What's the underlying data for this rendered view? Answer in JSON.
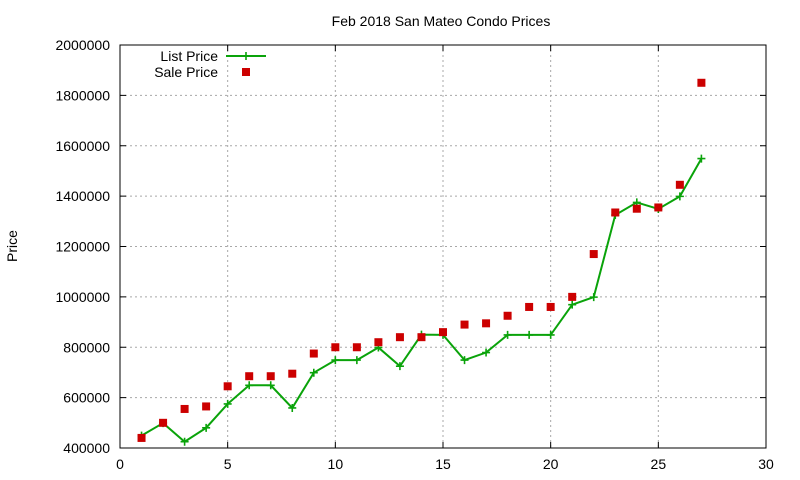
{
  "chart_data": {
    "type": "line",
    "title": "Feb 2018 San Mateo Condo Prices",
    "xlabel": "",
    "ylabel": "Price",
    "xlim": [
      0,
      30
    ],
    "ylim": [
      400000,
      2000000
    ],
    "x_ticks": [
      0,
      5,
      10,
      15,
      20,
      25,
      30
    ],
    "y_ticks": [
      400000,
      600000,
      800000,
      1000000,
      1200000,
      1400000,
      1600000,
      1800000,
      2000000
    ],
    "grid": true,
    "legend_position": "top-left",
    "series": [
      {
        "name": "List Price",
        "style": "line+cross",
        "color": "#0aa30a",
        "x": [
          1,
          2,
          3,
          4,
          5,
          6,
          7,
          8,
          9,
          10,
          11,
          12,
          13,
          14,
          15,
          16,
          17,
          18,
          19,
          20,
          21,
          22,
          23,
          24,
          25,
          26,
          27
        ],
        "y": [
          449000,
          499000,
          425000,
          480000,
          575000,
          649000,
          649000,
          559000,
          699000,
          749000,
          749000,
          799000,
          725000,
          850000,
          849000,
          749000,
          779000,
          849000,
          849000,
          849000,
          969000,
          999000,
          1325000,
          1375000,
          1349000,
          1399000,
          1549000
        ]
      },
      {
        "name": "Sale Price",
        "style": "square",
        "color": "#cc0000",
        "x": [
          1,
          2,
          3,
          4,
          5,
          6,
          7,
          8,
          9,
          10,
          11,
          12,
          13,
          14,
          15,
          16,
          17,
          18,
          19,
          20,
          21,
          22,
          23,
          24,
          25,
          26,
          27
        ],
        "y": [
          440000,
          500000,
          555000,
          565000,
          645000,
          685000,
          685000,
          695000,
          775000,
          800000,
          800000,
          820000,
          840000,
          840000,
          860000,
          890000,
          895000,
          925000,
          960000,
          960000,
          1000000,
          1170000,
          1335000,
          1350000,
          1355000,
          1445000,
          1850000
        ]
      }
    ]
  }
}
